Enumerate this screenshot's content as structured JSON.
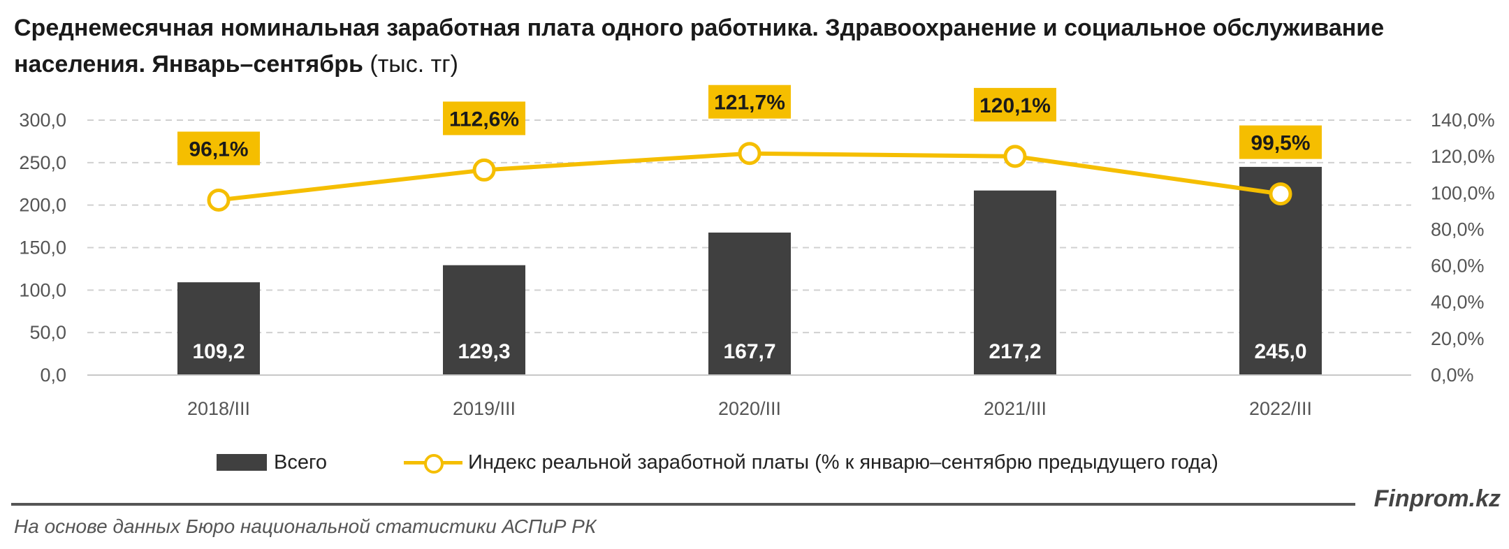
{
  "title": {
    "bold": "Среднемесячная номинальная заработная плата одного работника. Здравоохранение и социальное обслуживание населения. Январь–сентябрь",
    "unit": "(тыс. тг)"
  },
  "chart_data": {
    "type": "bar",
    "categories": [
      "2018/III",
      "2019/III",
      "2020/III",
      "2021/III",
      "2022/III"
    ],
    "series": [
      {
        "name": "Всего",
        "type": "bar",
        "axis": "left",
        "values": [
          109.2,
          129.3,
          167.7,
          217.2,
          245.0
        ],
        "labels": [
          "109,2",
          "129,3",
          "167,7",
          "217,2",
          "245,0"
        ],
        "color": "#404040"
      },
      {
        "name": "Индекс реальной заработной платы (% к январю–сентябрю предыдущего года)",
        "type": "line",
        "axis": "right",
        "values": [
          96.1,
          112.6,
          121.7,
          120.1,
          99.5
        ],
        "labels": [
          "96,1%",
          "112,6%",
          "121,7%",
          "120,1%",
          "99,5%"
        ],
        "color": "#f5be00"
      }
    ],
    "left_axis": {
      "ylim": [
        0,
        300
      ],
      "ticks": [
        0,
        50,
        100,
        150,
        200,
        250,
        300
      ],
      "tick_labels": [
        "0,0",
        "50,0",
        "100,0",
        "150,0",
        "200,0",
        "250,0",
        "300,0"
      ]
    },
    "right_axis": {
      "ylim": [
        0,
        140
      ],
      "ticks": [
        0,
        20,
        40,
        60,
        80,
        100,
        120,
        140
      ],
      "tick_labels": [
        "0,0%",
        "20,0%",
        "40,0%",
        "60,0%",
        "80,0%",
        "100,0%",
        "120,0%",
        "140,0%"
      ]
    },
    "grid": true,
    "legend_position": "bottom"
  },
  "legend": {
    "bar_label": "Всего",
    "line_label": "Индекс реальной заработной платы (% к январю–сентябрю предыдущего года)"
  },
  "brand": "Finprom.kz",
  "source": "На основе данных Бюро национальной статистики АСПиР РК",
  "colors": {
    "bar": "#404040",
    "line": "#f5be00",
    "label_box": "#f5be00",
    "grid": "#d0d0d0"
  }
}
